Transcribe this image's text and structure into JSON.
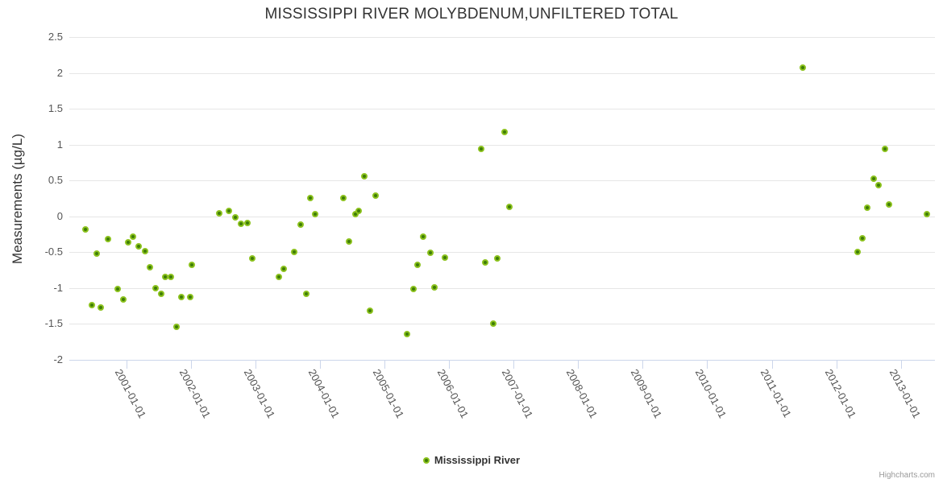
{
  "title": "MISSISSIPPI RIVER MOLYBDENUM,UNFILTERED TOTAL",
  "y_axis_title": "Measurements (µg/L)",
  "legend": {
    "label": "Mississippi River"
  },
  "credits": "Highcharts.com",
  "colors": {
    "point_fill": "#3E7D07",
    "point_border": "#8CC21E",
    "grid": "#E6E6E6",
    "axis": "#CCD6EB",
    "tick_label": "#555555",
    "title": "#333333",
    "credits": "#999999"
  },
  "chart_data": {
    "type": "scatter",
    "title": "MISSISSIPPI RIVER MOLYBDENUM,UNFILTERED TOTAL",
    "xlabel": "",
    "ylabel": "Measurements (µg/L)",
    "x_unit": "decimal_year",
    "xlim": [
      2000.11,
      2013.53
    ],
    "ylim": [
      -2,
      2.5
    ],
    "grid": "horizontal-only",
    "legend_position": "bottom-center",
    "y_ticks": [
      {
        "value": 2.5,
        "label": "2.5"
      },
      {
        "value": 2,
        "label": "2"
      },
      {
        "value": 1.5,
        "label": "1.5"
      },
      {
        "value": 1,
        "label": "1"
      },
      {
        "value": 0.5,
        "label": "0.5"
      },
      {
        "value": 0,
        "label": "0"
      },
      {
        "value": -0.5,
        "label": "-0.5"
      },
      {
        "value": -1,
        "label": "-1"
      },
      {
        "value": -1.5,
        "label": "-1.5"
      },
      {
        "value": -2,
        "label": "-2"
      }
    ],
    "x_ticks": [
      {
        "value": 2001,
        "label": "2001-01-01"
      },
      {
        "value": 2002,
        "label": "2002-01-01"
      },
      {
        "value": 2003,
        "label": "2003-01-01"
      },
      {
        "value": 2004,
        "label": "2004-01-01"
      },
      {
        "value": 2005,
        "label": "2005-01-01"
      },
      {
        "value": 2006,
        "label": "2006-01-01"
      },
      {
        "value": 2007,
        "label": "2007-01-01"
      },
      {
        "value": 2008,
        "label": "2008-01-01"
      },
      {
        "value": 2009,
        "label": "2009-01-01"
      },
      {
        "value": 2010,
        "label": "2010-01-01"
      },
      {
        "value": 2011,
        "label": "2011-01-01"
      },
      {
        "value": 2012,
        "label": "2012-01-01"
      },
      {
        "value": 2013,
        "label": "2013-01-01"
      }
    ],
    "series": [
      {
        "name": "Mississippi River",
        "points": [
          [
            2000.36,
            -0.18
          ],
          [
            2000.46,
            -1.24
          ],
          [
            2000.53,
            -0.52
          ],
          [
            2000.6,
            -1.27
          ],
          [
            2000.71,
            -0.32
          ],
          [
            2000.86,
            -1.01
          ],
          [
            2000.95,
            -1.16
          ],
          [
            2001.02,
            -0.36
          ],
          [
            2001.1,
            -0.28
          ],
          [
            2001.19,
            -0.42
          ],
          [
            2001.28,
            -0.49
          ],
          [
            2001.36,
            -0.71
          ],
          [
            2001.45,
            -1.0
          ],
          [
            2001.53,
            -1.08
          ],
          [
            2001.6,
            -0.84
          ],
          [
            2001.69,
            -0.84
          ],
          [
            2001.77,
            -1.54
          ],
          [
            2001.85,
            -1.13
          ],
          [
            2001.98,
            -1.12
          ],
          [
            2002.01,
            -0.68
          ],
          [
            2002.44,
            0.04
          ],
          [
            2002.59,
            0.08
          ],
          [
            2002.69,
            -0.01
          ],
          [
            2002.77,
            -0.1
          ],
          [
            2002.87,
            -0.09
          ],
          [
            2002.95,
            -0.59
          ],
          [
            2003.36,
            -0.84
          ],
          [
            2003.43,
            -0.73
          ],
          [
            2003.6,
            -0.5
          ],
          [
            2003.69,
            -0.12
          ],
          [
            2003.78,
            -1.08
          ],
          [
            2003.85,
            0.26
          ],
          [
            2003.92,
            0.03
          ],
          [
            2004.36,
            0.26
          ],
          [
            2004.45,
            -0.35
          ],
          [
            2004.55,
            0.03
          ],
          [
            2004.6,
            0.08
          ],
          [
            2004.68,
            0.56
          ],
          [
            2004.77,
            -1.31
          ],
          [
            2004.86,
            0.29
          ],
          [
            2005.34,
            -1.64
          ],
          [
            2005.44,
            -1.01
          ],
          [
            2005.51,
            -0.68
          ],
          [
            2005.59,
            -0.28
          ],
          [
            2005.71,
            -0.51
          ],
          [
            2005.77,
            -0.99
          ],
          [
            2005.93,
            -0.57
          ],
          [
            2006.5,
            0.94
          ],
          [
            2006.56,
            -0.64
          ],
          [
            2006.68,
            -1.5
          ],
          [
            2006.75,
            -0.59
          ],
          [
            2006.86,
            1.18
          ],
          [
            2006.93,
            0.13
          ],
          [
            2011.48,
            2.07
          ],
          [
            2012.33,
            -0.5
          ],
          [
            2012.41,
            -0.31
          ],
          [
            2012.48,
            0.12
          ],
          [
            2012.58,
            0.53
          ],
          [
            2012.65,
            0.43
          ],
          [
            2012.75,
            0.94
          ],
          [
            2012.82,
            0.17
          ],
          [
            2013.4,
            0.03
          ]
        ]
      }
    ]
  }
}
